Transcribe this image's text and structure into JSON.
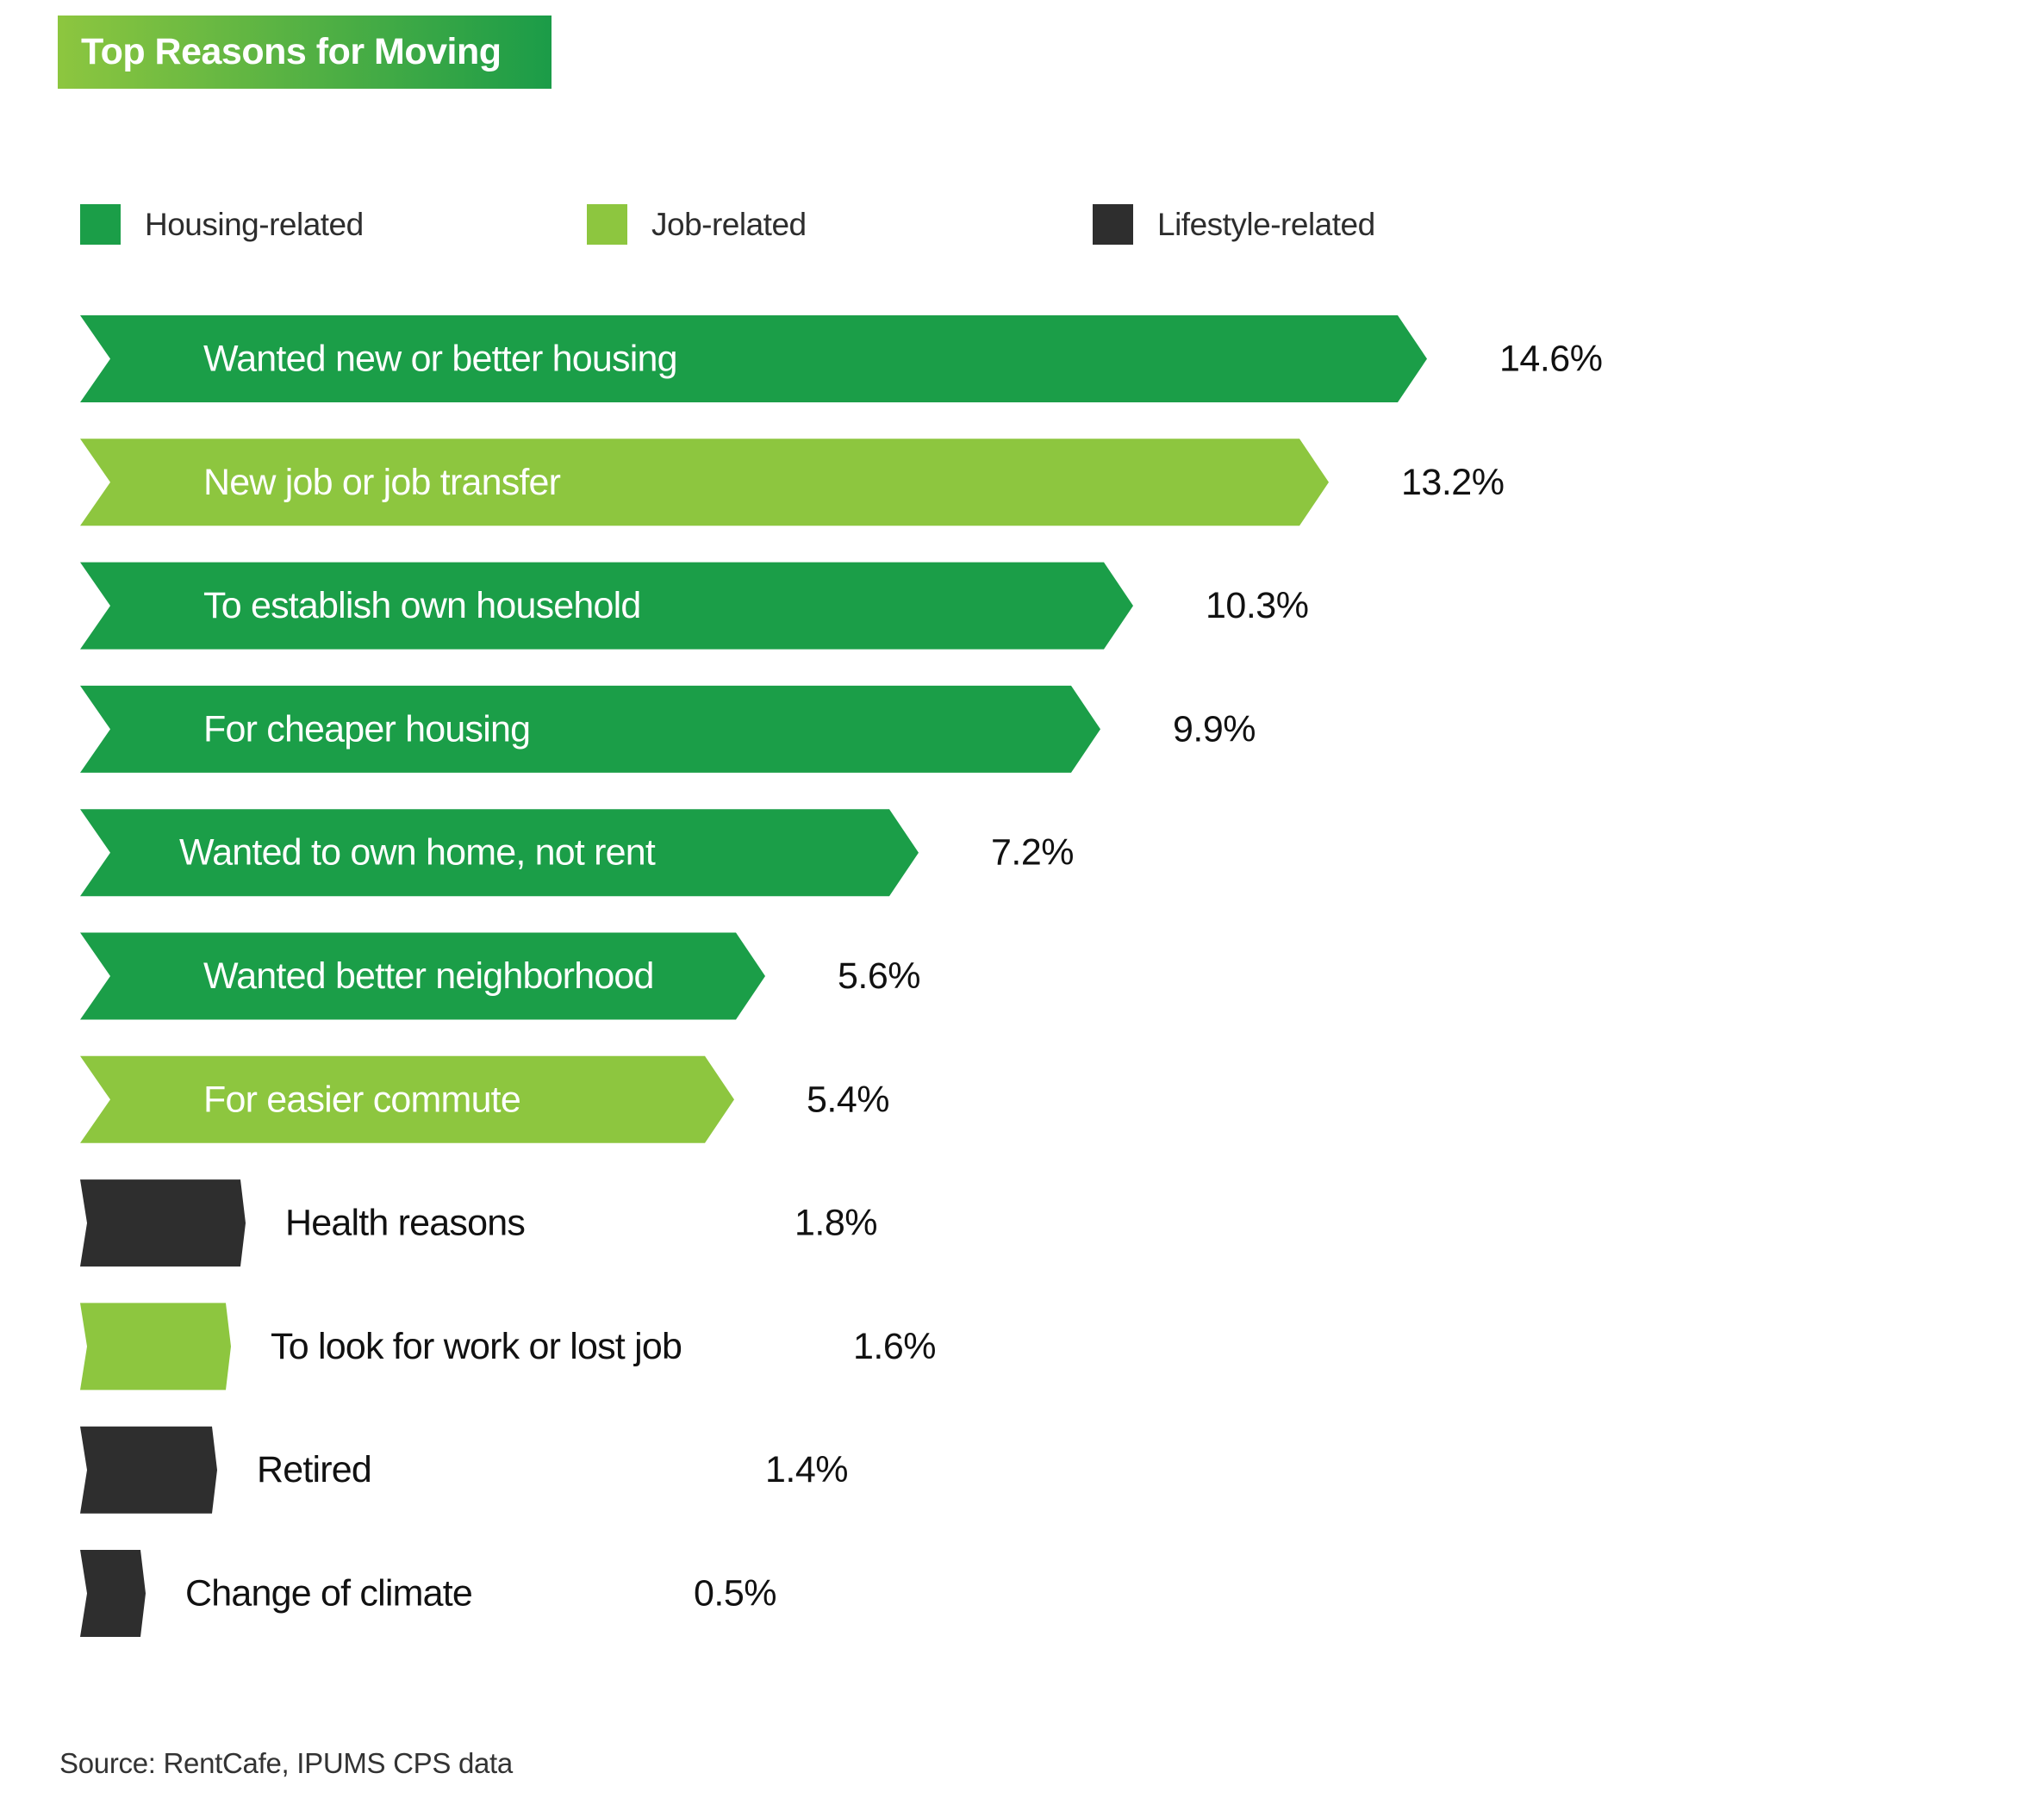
{
  "chart_data": {
    "type": "bar",
    "orientation": "horizontal",
    "title": "Top Reasons for Moving",
    "xlabel": "",
    "ylabel": "",
    "value_unit": "%",
    "legend": [
      {
        "key": "housing",
        "label": "Housing-related",
        "color": "#1b9e48"
      },
      {
        "key": "job",
        "label": "Job-related",
        "color": "#8dc63f"
      },
      {
        "key": "lifestyle",
        "label": "Lifestyle-related",
        "color": "#2e2e2e"
      }
    ],
    "legend_position": "top",
    "categories": [
      "Wanted new or better housing",
      "New job or job transfer",
      "To establish own household",
      "For cheaper housing",
      "Wanted to own home, not rent",
      "Wanted better neighborhood",
      "For easier commute",
      "Health reasons",
      "To look for work or lost job",
      "Retired",
      "Change of climate"
    ],
    "values": [
      14.6,
      13.2,
      10.3,
      9.9,
      7.2,
      5.6,
      5.4,
      1.8,
      1.6,
      1.4,
      0.5
    ],
    "value_labels": [
      "14.6%",
      "13.2%",
      "10.3%",
      "9.9%",
      "7.2%",
      "5.6%",
      "5.4%",
      "1.8%",
      "1.6%",
      "1.4%",
      "0.5%"
    ],
    "groups": [
      "housing",
      "job",
      "housing",
      "housing",
      "housing",
      "housing",
      "job",
      "lifestyle",
      "job",
      "lifestyle",
      "lifestyle"
    ],
    "grid": false
  },
  "source": "Source: RentCafe, IPUMS CPS data"
}
